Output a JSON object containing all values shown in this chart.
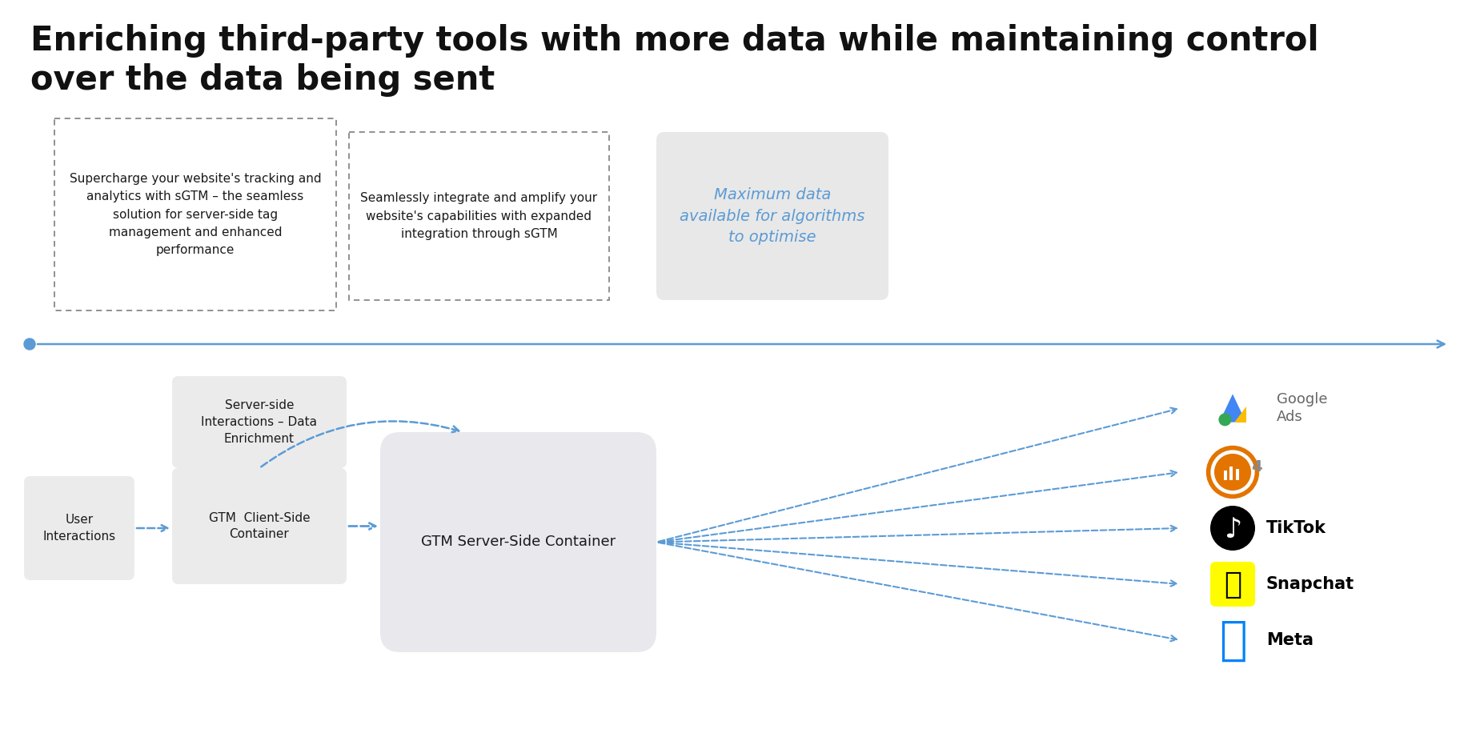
{
  "title": "Enriching third-party tools with more data while maintaining control\nover the data being sent",
  "title_fontsize": 30,
  "title_color": "#111111",
  "bg_color": "#ffffff",
  "box1_text": "Supercharge your website's tracking and\nanalytics with sGTM – the seamless\nsolution for server-side tag\nmanagement and enhanced\nperformance",
  "box2_text": "Seamlessly integrate and amplify your\nwebsite's capabilities with expanded\nintegration through sGTM",
  "box3_text": "Maximum data\navailable for algorithms\nto optimise",
  "box3_text_color": "#5b9bd5",
  "arrow_color": "#5b9bd5",
  "node_user": "User\nInteractions",
  "node_gtm_client": "GTM  Client-Side\nContainer",
  "node_server": "GTM Server-Side Container",
  "node_server_side": "Server-side\nInteractions – Data\nEnrichment",
  "dashed_arrow_color": "#5b9bd5",
  "box_face": "#ebebeb",
  "server_box_face": "#e8e8ed"
}
